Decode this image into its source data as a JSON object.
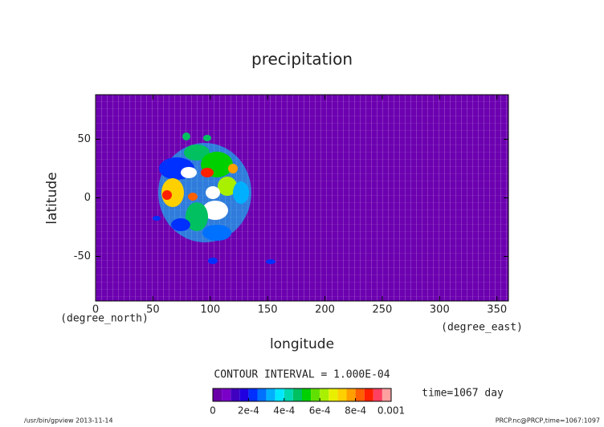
{
  "chart_data": {
    "type": "contour",
    "title": "precipitation",
    "x_label": "longitude",
    "y_label": "latitude",
    "x_unit": "(degree_east)",
    "y_unit": "(degree_north)",
    "xlim": [
      0,
      360
    ],
    "ylim": [
      -88,
      88
    ],
    "xticks": [
      0,
      50,
      100,
      150,
      200,
      250,
      300,
      350
    ],
    "yticks": [
      -50,
      0,
      50
    ],
    "background_color": "#6c00b0",
    "contour_interval_label": "CONTOUR INTERVAL = 1.000E-04",
    "time_label": "time=1067 day",
    "colorbar": {
      "clim": [
        0,
        0.001
      ],
      "colors": [
        "#6a00a8",
        "#7a00c8",
        "#4000c0",
        "#2000e0",
        "#0030ff",
        "#0070ff",
        "#00b0ff",
        "#00e8ff",
        "#00d8b0",
        "#00c060",
        "#00d000",
        "#60e000",
        "#a8f000",
        "#e8f000",
        "#ffd000",
        "#ffa000",
        "#ff6000",
        "#ff2000",
        "#ff4060",
        "#ffa0a0"
      ],
      "ticks": [
        {
          "value": 0,
          "label": "0"
        },
        {
          "value": 0.0002,
          "label": "2e-4"
        },
        {
          "value": 0.0004,
          "label": "4e-4"
        },
        {
          "value": 0.0006,
          "label": "6e-4"
        },
        {
          "value": 0.0008,
          "label": "8e-4"
        },
        {
          "value": 0.001,
          "label": "0.001"
        }
      ]
    },
    "footer_left": "/usr/bin/gpview  2013-11-14",
    "footer_right": "PRCP.nc@PRCP,time=1067:1097"
  }
}
